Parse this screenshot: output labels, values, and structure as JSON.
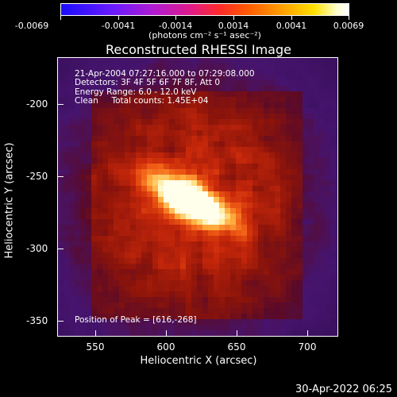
{
  "colorbar": {
    "labels": [
      "-0.0069",
      "-0.0041",
      "-0.0014",
      "0.0014",
      "0.0041",
      "0.0069"
    ],
    "units": "(photons cm⁻² s⁻¹ asec⁻²)"
  },
  "title": "Reconstructed RHESSI Image",
  "annotations": {
    "time_range": "21-Apr-2004 07:27:16.000 to 07:29:08.000",
    "detectors": "Detectors: 3F 4F 5F 6F 7F 8F, Att 0",
    "energy": "Energy Range: 6.0 - 12.0 keV",
    "method": "Clean     Total counts: 1.45E+04",
    "peak": "Position of Peak = [616,-268]"
  },
  "axes": {
    "xlabel": "Heliocentric X (arcsec)",
    "ylabel": "Heliocentric Y (arcsec)",
    "xticks": [
      "550",
      "600",
      "650",
      "700"
    ],
    "yticks": [
      "-200",
      "-250",
      "-300",
      "-350"
    ]
  },
  "footer": {
    "date": "30-Apr-2022 06:25"
  },
  "colors": {
    "background": "#000000",
    "text": "#ffffff"
  }
}
